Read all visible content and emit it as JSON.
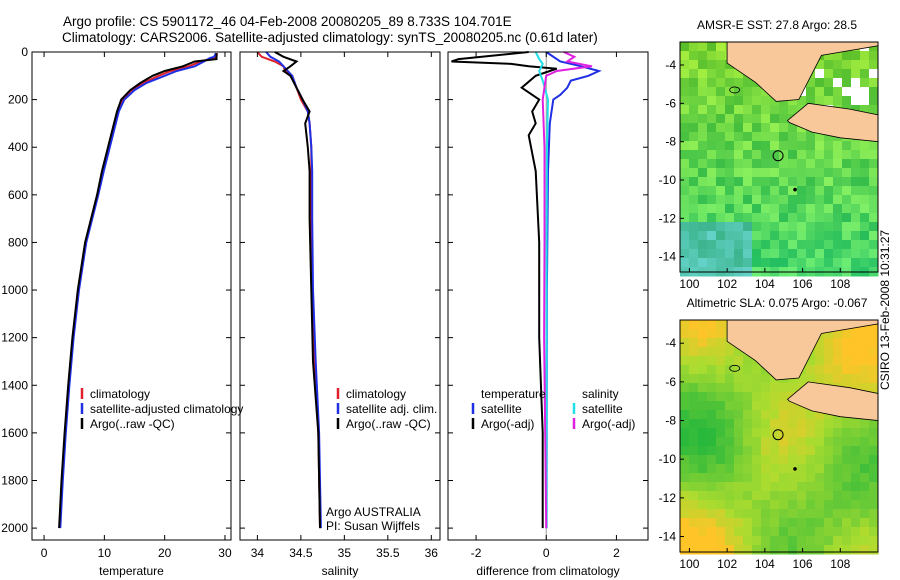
{
  "header": {
    "title_line1": "Argo profile: CS 5901172_46 04-Feb-2008 20080205_89 8.733S 104.701E",
    "title_line2": "Climatology: CARS2006. Satellite-adjusted climatology: synTS_20080205.nc (0.61d later)"
  },
  "stamp": "CSIRO 13-Feb-2008 10:31:27",
  "colors": {
    "climatology": "#e0202a",
    "satellite": "#1f2fe6",
    "argo": "#000000",
    "satellite_salinity": "#22e0e8",
    "argo_adj_salinity": "#e020e0",
    "land": "#f8c79a"
  },
  "chart_data": [
    {
      "type": "line",
      "panel": "temperature",
      "xlabel": "temperature",
      "ylabel": "",
      "xlim": [
        -2,
        31
      ],
      "ylim": [
        2050,
        0
      ],
      "xticks": [
        0,
        10,
        20,
        30
      ],
      "yticks": [
        0,
        200,
        400,
        600,
        800,
        1000,
        1200,
        1400,
        1600,
        1800,
        2000
      ],
      "legend": {
        "placement": "lower-right",
        "entries": [
          "climatology",
          "satellite-adjusted climatology",
          "Argo(..raw -QC)"
        ]
      },
      "series": [
        {
          "name": "climatology",
          "color": "#e0202a",
          "y": [
            5,
            20,
            25,
            40,
            60,
            80,
            100,
            130,
            160,
            200,
            250,
            300,
            400,
            500,
            600,
            700,
            800,
            1000,
            1200,
            1400,
            1600,
            1800,
            2000
          ],
          "x": [
            28.7,
            28.6,
            28.2,
            26.0,
            24.0,
            21.0,
            19.0,
            16.5,
            14.5,
            13.0,
            12.3,
            11.8,
            10.8,
            9.8,
            8.9,
            7.9,
            6.9,
            5.7,
            4.8,
            4.1,
            3.5,
            3.0,
            2.6
          ]
        },
        {
          "name": "satellite-adjusted climatology",
          "color": "#1f2fe6",
          "y": [
            5,
            20,
            25,
            40,
            60,
            80,
            100,
            130,
            160,
            200,
            250,
            300,
            400,
            500,
            600,
            700,
            800,
            1000,
            1200,
            1400,
            1600,
            1800,
            2000
          ],
          "x": [
            28.5,
            28.2,
            27.5,
            26.5,
            25.0,
            22.0,
            20.0,
            17.0,
            15.0,
            13.3,
            12.4,
            11.9,
            10.9,
            9.9,
            9.0,
            8.0,
            7.0,
            5.8,
            4.9,
            4.2,
            3.6,
            3.1,
            2.7
          ]
        },
        {
          "name": "Argo(..raw -QC)",
          "color": "#000000",
          "y": [
            5,
            20,
            30,
            40,
            60,
            80,
            100,
            130,
            160,
            200,
            250,
            300,
            400,
            500,
            600,
            700,
            800,
            1000,
            1200,
            1400,
            1600,
            1800,
            2000
          ],
          "x": [
            28.6,
            28.6,
            28.6,
            25.0,
            23.0,
            20.0,
            18.0,
            16.0,
            14.3,
            12.8,
            12.1,
            11.6,
            10.6,
            9.6,
            8.8,
            7.8,
            6.8,
            5.6,
            4.7,
            4.0,
            3.4,
            2.9,
            2.5
          ]
        }
      ]
    },
    {
      "type": "line",
      "panel": "salinity",
      "xlabel": "salinity",
      "ylabel": "",
      "xlim": [
        33.8,
        36.1
      ],
      "ylim": [
        2050,
        0
      ],
      "xticks": [
        34,
        34.5,
        35,
        35.5,
        36
      ],
      "xtick_labels": [
        "34",
        "34.5",
        "35",
        "35.5",
        "36"
      ],
      "legend": {
        "placement": "lower-right",
        "entries": [
          "climatology",
          "satellite adj. clim.",
          "Argo(..raw -QC)"
        ]
      },
      "annotation": [
        "Argo AUSTRALIA",
        "PI: Susan Wijffels"
      ],
      "series": [
        {
          "name": "climatology",
          "color": "#e0202a",
          "y": [
            0,
            20,
            40,
            60,
            80,
            100,
            150,
            200,
            250,
            300,
            400,
            500,
            700,
            1000,
            1300,
            1600,
            2000
          ],
          "x": [
            34.0,
            34.05,
            34.2,
            34.3,
            34.32,
            34.4,
            34.45,
            34.5,
            34.58,
            34.6,
            34.62,
            34.62,
            34.62,
            34.63,
            34.66,
            34.7,
            34.72
          ]
        },
        {
          "name": "satellite adj. clim.",
          "color": "#1f2fe6",
          "y": [
            0,
            20,
            40,
            60,
            80,
            100,
            150,
            200,
            250,
            300,
            400,
            500,
            700,
            1000,
            1300,
            1600,
            2000
          ],
          "x": [
            34.1,
            34.15,
            34.25,
            34.3,
            34.35,
            34.4,
            34.45,
            34.52,
            34.58,
            34.6,
            34.62,
            34.63,
            34.63,
            34.64,
            34.67,
            34.71,
            34.73
          ]
        },
        {
          "name": "Argo(..raw -QC)",
          "color": "#000000",
          "y": [
            0,
            20,
            40,
            60,
            80,
            100,
            150,
            200,
            250,
            300,
            400,
            500,
            700,
            1000,
            1300,
            1600,
            2000
          ],
          "x": [
            34.2,
            34.3,
            34.45,
            34.38,
            34.3,
            34.38,
            34.45,
            34.52,
            34.6,
            34.55,
            34.58,
            34.6,
            34.6,
            34.62,
            34.64,
            34.7,
            34.72
          ]
        }
      ]
    },
    {
      "type": "line",
      "panel": "difference",
      "xlabel": "difference from climatology",
      "ylabel": "",
      "xlim": [
        -2.8,
        2.9
      ],
      "ylim": [
        2050,
        0
      ],
      "xticks": [
        -2,
        0,
        2
      ],
      "legend": {
        "placement": "lower-center",
        "entries": [
          "temperature",
          "satellite",
          "Argo(-adj)",
          "salinity",
          "satellite",
          "Argo(-adj)"
        ]
      },
      "series": [
        {
          "name": "temperature satellite",
          "color": "#1f2fe6",
          "y": [
            0,
            40,
            60,
            80,
            100,
            120,
            150,
            180,
            200,
            300,
            500,
            1000,
            2000
          ],
          "x": [
            0,
            0.4,
            1.0,
            1.5,
            1.2,
            0.7,
            0.6,
            0.4,
            0.2,
            0.1,
            0.05,
            0.02,
            0.01
          ]
        },
        {
          "name": "temperature Argo(-adj)",
          "color": "#000000",
          "y": [
            0,
            30,
            40,
            50,
            60,
            70,
            80,
            100,
            150,
            200,
            250,
            300,
            350,
            500,
            800,
            1200,
            1600,
            2000
          ],
          "x": [
            -0.5,
            -2.5,
            -2.7,
            -1.0,
            -0.5,
            0.3,
            0.1,
            -0.3,
            -0.7,
            -0.2,
            -0.4,
            -0.3,
            -0.5,
            -0.3,
            -0.2,
            -0.2,
            -0.1,
            -0.1
          ]
        },
        {
          "name": "salinity satellite",
          "color": "#22e0e8",
          "y": [
            0,
            30,
            50,
            80,
            120,
            200,
            400,
            800,
            2000
          ],
          "x": [
            -0.3,
            -0.2,
            -0.1,
            -0.2,
            -0.1,
            0.05,
            0.02,
            0.01,
            0.01
          ]
        },
        {
          "name": "salinity Argo(-adj)",
          "color": "#e020e0",
          "y": [
            0,
            20,
            40,
            60,
            80,
            100,
            200,
            400,
            800,
            1200,
            1600,
            2000
          ],
          "x": [
            0.5,
            0.8,
            0.6,
            1.3,
            0.3,
            0.0,
            -0.1,
            -0.05,
            -0.05,
            -0.06,
            -0.03,
            0.0
          ]
        }
      ]
    },
    {
      "type": "heatmap",
      "panel": "sst-map",
      "title": "AMSR-E SST: 27.8 Argo: 28.5",
      "xlim": [
        99.5,
        110
      ],
      "ylim": [
        -14.8,
        -2.8
      ],
      "xticks": [
        100,
        102,
        104,
        106,
        108
      ],
      "yticks": [
        -4,
        -6,
        -8,
        -10,
        -12,
        -14
      ],
      "profile_location": [
        104.701,
        -8.733
      ],
      "marker_location": [
        105.6,
        -10.5
      ]
    },
    {
      "type": "heatmap",
      "panel": "sla-map",
      "title": "Altimetric SLA: 0.075 Argo: -0.067",
      "xlim": [
        99.5,
        110
      ],
      "ylim": [
        -14.8,
        -2.8
      ],
      "xticks": [
        100,
        102,
        104,
        106,
        108
      ],
      "yticks": [
        -4,
        -6,
        -8,
        -10,
        -12,
        -14
      ],
      "profile_location": [
        104.701,
        -8.733
      ],
      "marker_location": [
        105.6,
        -10.5
      ]
    }
  ]
}
